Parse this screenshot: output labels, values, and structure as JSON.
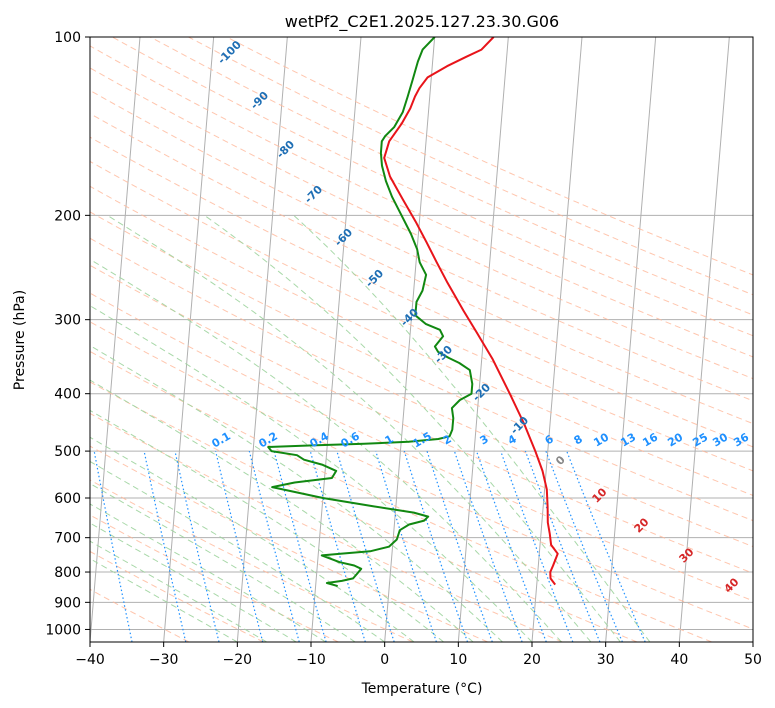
{
  "chart_data": {
    "type": "line",
    "title": "wetPf2_C2E1.2025.127.23.30.G06",
    "xlabel": "Temperature (°C)",
    "ylabel": "Pressure (hPa)",
    "xlim": [
      -40,
      50
    ],
    "ylim": [
      1050,
      100
    ],
    "yscale": "log",
    "x_ticks": [
      -40,
      -30,
      -20,
      -10,
      0,
      10,
      20,
      30,
      40,
      50
    ],
    "y_ticks": [
      100,
      200,
      300,
      400,
      500,
      600,
      700,
      800,
      900,
      1000
    ],
    "grid": true,
    "series": [
      {
        "color": "#e8141a",
        "points": [
          [
            22.5,
            840
          ],
          [
            21.8,
            820
          ],
          [
            21.7,
            800
          ],
          [
            22.0,
            780
          ],
          [
            22.5,
            745
          ],
          [
            21.5,
            720
          ],
          [
            21.2,
            690
          ],
          [
            20.8,
            660
          ],
          [
            20.6,
            620
          ],
          [
            20.3,
            580
          ],
          [
            19.5,
            540
          ],
          [
            18.3,
            500
          ],
          [
            16.5,
            450
          ],
          [
            14.2,
            400
          ],
          [
            11.5,
            350
          ],
          [
            9.0,
            315
          ],
          [
            7.0,
            290
          ],
          [
            4.5,
            260
          ],
          [
            2.8,
            240
          ],
          [
            1.2,
            222
          ],
          [
            -0.5,
            205
          ],
          [
            -2.5,
            188
          ],
          [
            -4.5,
            172
          ],
          [
            -5.5,
            160
          ],
          [
            -5.0,
            150
          ],
          [
            -3.5,
            140
          ],
          [
            -2.5,
            132
          ],
          [
            -2.0,
            126
          ],
          [
            -1.5,
            122
          ],
          [
            -0.5,
            117
          ],
          [
            2.0,
            112
          ],
          [
            4.5,
            108
          ],
          [
            6.5,
            105
          ],
          [
            8.0,
            100
          ]
        ]
      },
      {
        "color": "#118811",
        "points": [
          [
            -7.0,
            845
          ],
          [
            -8.5,
            835
          ],
          [
            -6.5,
            828
          ],
          [
            -5.0,
            820
          ],
          [
            -4.5,
            805
          ],
          [
            -4.0,
            790
          ],
          [
            -5.0,
            780
          ],
          [
            -7.0,
            770
          ],
          [
            -9.5,
            750
          ],
          [
            -7.0,
            745
          ],
          [
            -3.0,
            738
          ],
          [
            -0.5,
            725
          ],
          [
            0.5,
            705
          ],
          [
            0.8,
            680
          ],
          [
            2.0,
            665
          ],
          [
            4.0,
            655
          ],
          [
            4.5,
            645
          ],
          [
            2.5,
            635
          ],
          [
            -3.0,
            620
          ],
          [
            -10.0,
            600
          ],
          [
            -17.0,
            575
          ],
          [
            -14.0,
            565
          ],
          [
            -9.0,
            555
          ],
          [
            -8.5,
            540
          ],
          [
            -10.5,
            527
          ],
          [
            -13.0,
            517
          ],
          [
            -14.0,
            508
          ],
          [
            -17.5,
            500
          ],
          [
            -18.0,
            492
          ],
          [
            -12.0,
            489
          ],
          [
            -5.0,
            486
          ],
          [
            1.0,
            482
          ],
          [
            5.0,
            477
          ],
          [
            6.5,
            472
          ],
          [
            6.8,
            460
          ],
          [
            6.8,
            440
          ],
          [
            6.5,
            423
          ],
          [
            7.5,
            410
          ],
          [
            9.0,
            400
          ],
          [
            9.0,
            385
          ],
          [
            8.5,
            365
          ],
          [
            7.0,
            355
          ],
          [
            5.5,
            348
          ],
          [
            4.0,
            340
          ],
          [
            3.5,
            333
          ],
          [
            4.5,
            320
          ],
          [
            4.0,
            312
          ],
          [
            2.0,
            305
          ],
          [
            0.5,
            295
          ],
          [
            0.5,
            280
          ],
          [
            1.2,
            268
          ],
          [
            1.5,
            252
          ],
          [
            0.5,
            240
          ],
          [
            0.0,
            228
          ],
          [
            -1.0,
            215
          ],
          [
            -2.5,
            200
          ],
          [
            -4.0,
            186
          ],
          [
            -5.0,
            175
          ],
          [
            -5.7,
            165
          ],
          [
            -6.0,
            157
          ],
          [
            -6.0,
            150
          ],
          [
            -5.6,
            147
          ],
          [
            -4.5,
            142
          ],
          [
            -3.5,
            134
          ],
          [
            -3.0,
            126
          ],
          [
            -2.5,
            118
          ],
          [
            -2.0,
            110
          ],
          [
            -1.5,
            105
          ],
          [
            0.0,
            100
          ]
        ]
      }
    ],
    "dry_adiabat_labels": [
      "-100",
      "-90",
      "-80",
      "-70",
      "-60",
      "-50",
      "-40",
      "-30",
      "-20",
      "-10",
      "0",
      "10",
      "20",
      "30",
      "40"
    ],
    "mixing_ratio_labels": [
      "0.1",
      "0.2",
      "0.4",
      "0.6",
      "1",
      "1.5",
      "2",
      "3",
      "4",
      "6",
      "8",
      "10",
      "13",
      "16",
      "20",
      "25",
      "30",
      "36"
    ],
    "colors": {
      "temperature": "#e8141a",
      "dewpoint": "#118811",
      "dry_adiabat_label": "#1f6fb5",
      "warm_label": "#d62728",
      "mixing_ratio": "#1e90ff",
      "isotherm": "#b0b0b0",
      "dry_adiabat": "#ffb89a",
      "moist_adiabat": "#9fd49f"
    }
  }
}
